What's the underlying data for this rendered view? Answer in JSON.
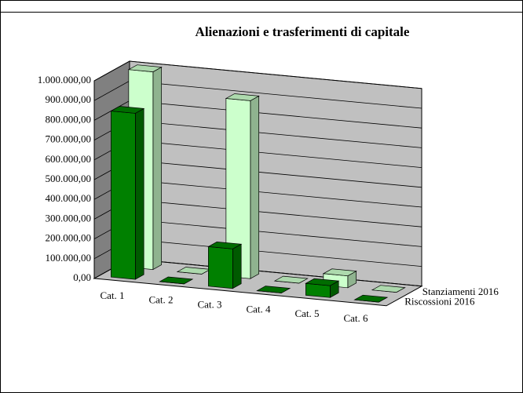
{
  "chart_data": {
    "type": "bar3d",
    "title": "Alienazioni e trasferimenti di capitale",
    "categories": [
      "Cat. 1",
      "Cat. 2",
      "Cat. 3",
      "Cat. 4",
      "Cat. 5",
      "Cat. 6"
    ],
    "series": [
      {
        "name": "Riscossioni   2016",
        "color": "#008000",
        "values": [
          840000,
          0,
          200000,
          0,
          60000,
          0
        ]
      },
      {
        "name": "Stanziamenti 2016",
        "color": "#ccffcc",
        "values": [
          1000000,
          0,
          900000,
          0,
          60000,
          0
        ]
      }
    ],
    "ylim": [
      0,
      1000000
    ],
    "yticks": [
      {
        "value": 0,
        "label": "0,00"
      },
      {
        "value": 100000,
        "label": "100.000,00"
      },
      {
        "value": 200000,
        "label": "200.000,00"
      },
      {
        "value": 300000,
        "label": "300.000,00"
      },
      {
        "value": 400000,
        "label": "400.000,00"
      },
      {
        "value": 500000,
        "label": "500.000,00"
      },
      {
        "value": 600000,
        "label": "600.000,00"
      },
      {
        "value": 700000,
        "label": "700.000,00"
      },
      {
        "value": 800000,
        "label": "800.000,00"
      },
      {
        "value": 900000,
        "label": "900.000,00"
      },
      {
        "value": 1000000,
        "label": "1.000.000,00"
      }
    ],
    "grid": true
  }
}
